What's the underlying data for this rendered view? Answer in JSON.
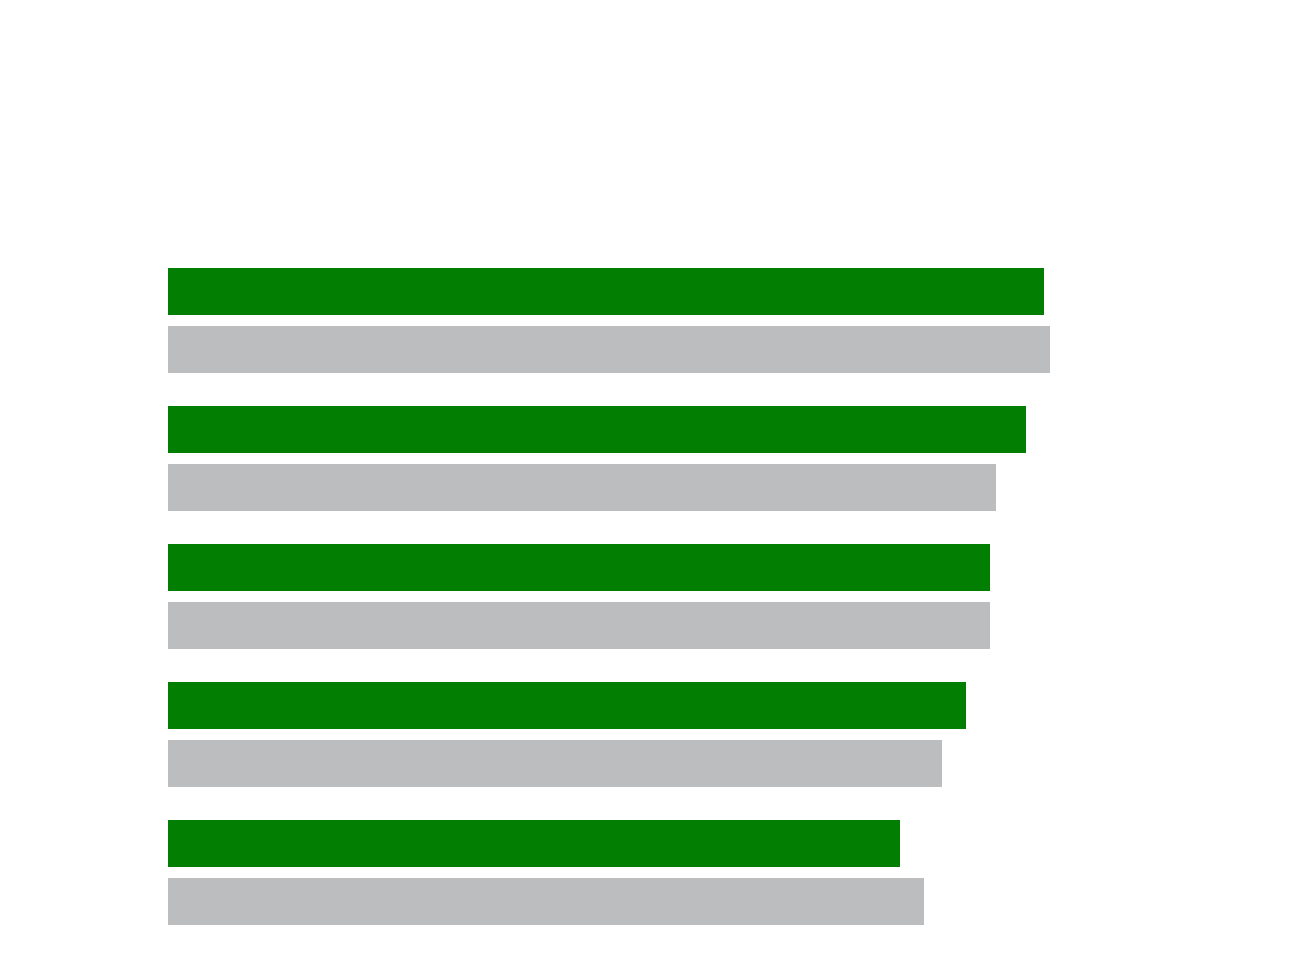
{
  "chart_data": {
    "type": "bar",
    "orientation": "horizontal",
    "categories": [
      null,
      null,
      null,
      null,
      null
    ],
    "series": [
      {
        "color": "#027f02",
        "values": [
          876,
          858,
          822,
          798,
          732
        ]
      },
      {
        "color": "#bcbdbf",
        "values": [
          882,
          828,
          822,
          774,
          756
        ]
      }
    ],
    "xlim": [
      0,
      1000
    ],
    "grid": false
  }
}
